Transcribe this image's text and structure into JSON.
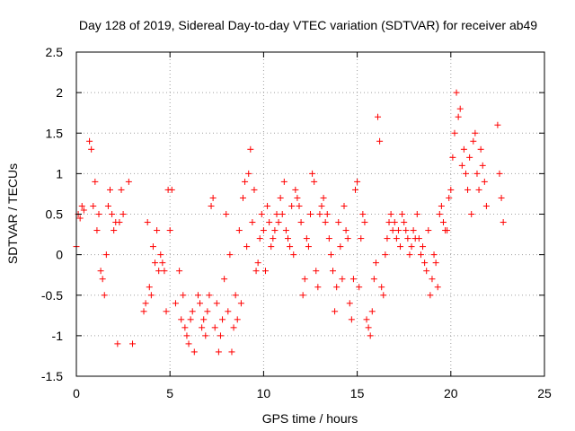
{
  "chart_data": {
    "type": "scatter",
    "title": "Day 128 of 2019, Sidereal Day-to-day VTEC variation (SDTVAR) for receiver ab49",
    "xlabel": "GPS time / hours",
    "ylabel": "SDTVAR / TECUs",
    "xlim": [
      0,
      25
    ],
    "ylim": [
      -1.5,
      2.5
    ],
    "xticks": [
      0,
      5,
      10,
      15,
      20,
      25
    ],
    "xtick_labels": [
      "0",
      "5",
      "10",
      "15",
      "20",
      "25"
    ],
    "yticks": [
      -1.5,
      -1,
      -0.5,
      0,
      0.5,
      1,
      1.5,
      2,
      2.5
    ],
    "ytick_labels": [
      "-1.5",
      "-1",
      "-0.5",
      "0",
      "0.5",
      "1",
      "1.5",
      "2",
      "2.5"
    ],
    "grid": true,
    "marker": "+",
    "color": "#ff0000",
    "series": [
      {
        "name": "ab49",
        "x": [
          0.0,
          0.1,
          0.2,
          0.3,
          0.4,
          0.7,
          0.8,
          0.9,
          1.0,
          1.1,
          1.2,
          1.3,
          1.4,
          1.5,
          1.6,
          1.7,
          1.8,
          1.9,
          2.0,
          2.1,
          2.2,
          2.3,
          2.4,
          2.5,
          2.8,
          3.0,
          3.6,
          3.7,
          3.8,
          3.9,
          4.0,
          4.1,
          4.2,
          4.3,
          4.4,
          4.5,
          4.6,
          4.7,
          4.8,
          4.9,
          5.0,
          5.1,
          5.3,
          5.5,
          5.6,
          5.7,
          5.8,
          5.9,
          6.0,
          6.1,
          6.2,
          6.3,
          6.5,
          6.6,
          6.7,
          6.8,
          6.9,
          7.0,
          7.1,
          7.2,
          7.3,
          7.4,
          7.5,
          7.6,
          7.7,
          7.8,
          7.9,
          8.0,
          8.1,
          8.2,
          8.3,
          8.4,
          8.5,
          8.6,
          8.7,
          8.8,
          8.9,
          9.0,
          9.1,
          9.2,
          9.3,
          9.4,
          9.5,
          9.6,
          9.7,
          9.8,
          9.9,
          10.0,
          10.1,
          10.2,
          10.3,
          10.4,
          10.5,
          10.6,
          10.7,
          10.8,
          10.9,
          11.0,
          11.1,
          11.2,
          11.3,
          11.4,
          11.5,
          11.6,
          11.7,
          11.8,
          11.9,
          12.0,
          12.1,
          12.2,
          12.3,
          12.4,
          12.5,
          12.6,
          12.7,
          12.8,
          12.9,
          13.0,
          13.1,
          13.2,
          13.3,
          13.4,
          13.5,
          13.6,
          13.7,
          13.8,
          13.9,
          14.0,
          14.1,
          14.2,
          14.3,
          14.4,
          14.5,
          14.6,
          14.7,
          14.8,
          14.9,
          15.0,
          15.1,
          15.2,
          15.3,
          15.4,
          15.5,
          15.6,
          15.7,
          15.8,
          15.9,
          16.0,
          16.1,
          16.2,
          16.3,
          16.4,
          16.5,
          16.6,
          16.7,
          16.8,
          16.9,
          17.0,
          17.1,
          17.2,
          17.3,
          17.4,
          17.5,
          17.6,
          17.7,
          17.8,
          17.9,
          18.0,
          18.1,
          18.2,
          18.3,
          18.4,
          18.5,
          18.6,
          18.7,
          18.8,
          18.9,
          19.0,
          19.1,
          19.2,
          19.3,
          19.4,
          19.5,
          19.6,
          19.7,
          19.8,
          19.9,
          20.0,
          20.1,
          20.2,
          20.3,
          20.4,
          20.5,
          20.6,
          20.7,
          20.8,
          20.9,
          21.0,
          21.1,
          21.2,
          21.3,
          21.4,
          21.5,
          21.6,
          21.7,
          21.8,
          21.9,
          22.5,
          22.6,
          22.7,
          22.8
        ],
        "y": [
          0.1,
          0.5,
          0.45,
          0.6,
          0.55,
          1.4,
          1.3,
          0.6,
          0.9,
          0.3,
          0.5,
          -0.2,
          -0.3,
          -0.5,
          0.0,
          0.6,
          0.8,
          0.5,
          0.3,
          0.4,
          -1.1,
          0.4,
          0.8,
          0.5,
          0.9,
          -1.1,
          -0.7,
          -0.6,
          0.4,
          -0.4,
          -0.5,
          0.1,
          -0.1,
          0.3,
          -0.2,
          0.0,
          -0.1,
          -0.2,
          -0.7,
          0.8,
          0.3,
          0.8,
          -0.6,
          -0.2,
          -0.8,
          -0.5,
          -0.9,
          -1.0,
          -1.1,
          -0.8,
          -0.7,
          -1.2,
          -0.5,
          -0.6,
          -0.9,
          -0.8,
          -1.0,
          -0.7,
          -0.5,
          0.6,
          0.7,
          -0.9,
          -0.6,
          -1.2,
          -1.0,
          -0.8,
          -0.3,
          0.5,
          -0.7,
          0.0,
          -1.2,
          -0.9,
          -0.5,
          -0.8,
          0.3,
          -0.6,
          0.7,
          0.9,
          0.1,
          1.0,
          1.3,
          0.4,
          0.8,
          -0.2,
          -0.1,
          0.2,
          0.5,
          0.3,
          -0.2,
          0.6,
          0.4,
          0.1,
          0.2,
          0.3,
          0.5,
          0.4,
          0.7,
          0.5,
          0.9,
          0.3,
          0.2,
          0.1,
          0.6,
          0.0,
          0.8,
          0.7,
          0.6,
          0.4,
          -0.5,
          -0.3,
          0.2,
          0.1,
          0.5,
          1.0,
          0.9,
          -0.2,
          -0.4,
          0.5,
          0.6,
          0.7,
          0.4,
          0.5,
          0.2,
          0.0,
          -0.2,
          -0.7,
          -0.4,
          0.4,
          0.1,
          -0.3,
          0.6,
          0.3,
          0.2,
          -0.6,
          -0.8,
          -0.3,
          0.8,
          0.9,
          -0.4,
          0.2,
          0.5,
          0.4,
          -0.8,
          -0.9,
          -1.0,
          -0.7,
          -0.3,
          -0.1,
          1.7,
          1.4,
          -0.4,
          -0.5,
          0.0,
          0.2,
          0.4,
          0.5,
          0.3,
          0.4,
          0.2,
          0.3,
          0.1,
          0.5,
          0.4,
          0.3,
          0.2,
          0.0,
          0.1,
          0.3,
          0.2,
          0.5,
          0.2,
          0.0,
          0.1,
          -0.1,
          -0.2,
          0.3,
          -0.5,
          -0.3,
          0.0,
          -0.1,
          -0.4,
          0.5,
          0.6,
          0.4,
          0.3,
          0.3,
          0.7,
          0.8,
          1.2,
          1.5,
          2.0,
          1.7,
          1.8,
          1.1,
          1.3,
          1.0,
          0.8,
          1.2,
          0.5,
          1.4,
          1.5,
          1.0,
          0.8,
          1.3,
          1.1,
          0.9,
          0.6,
          1.6,
          1.0,
          0.7,
          0.4
        ]
      }
    ]
  }
}
